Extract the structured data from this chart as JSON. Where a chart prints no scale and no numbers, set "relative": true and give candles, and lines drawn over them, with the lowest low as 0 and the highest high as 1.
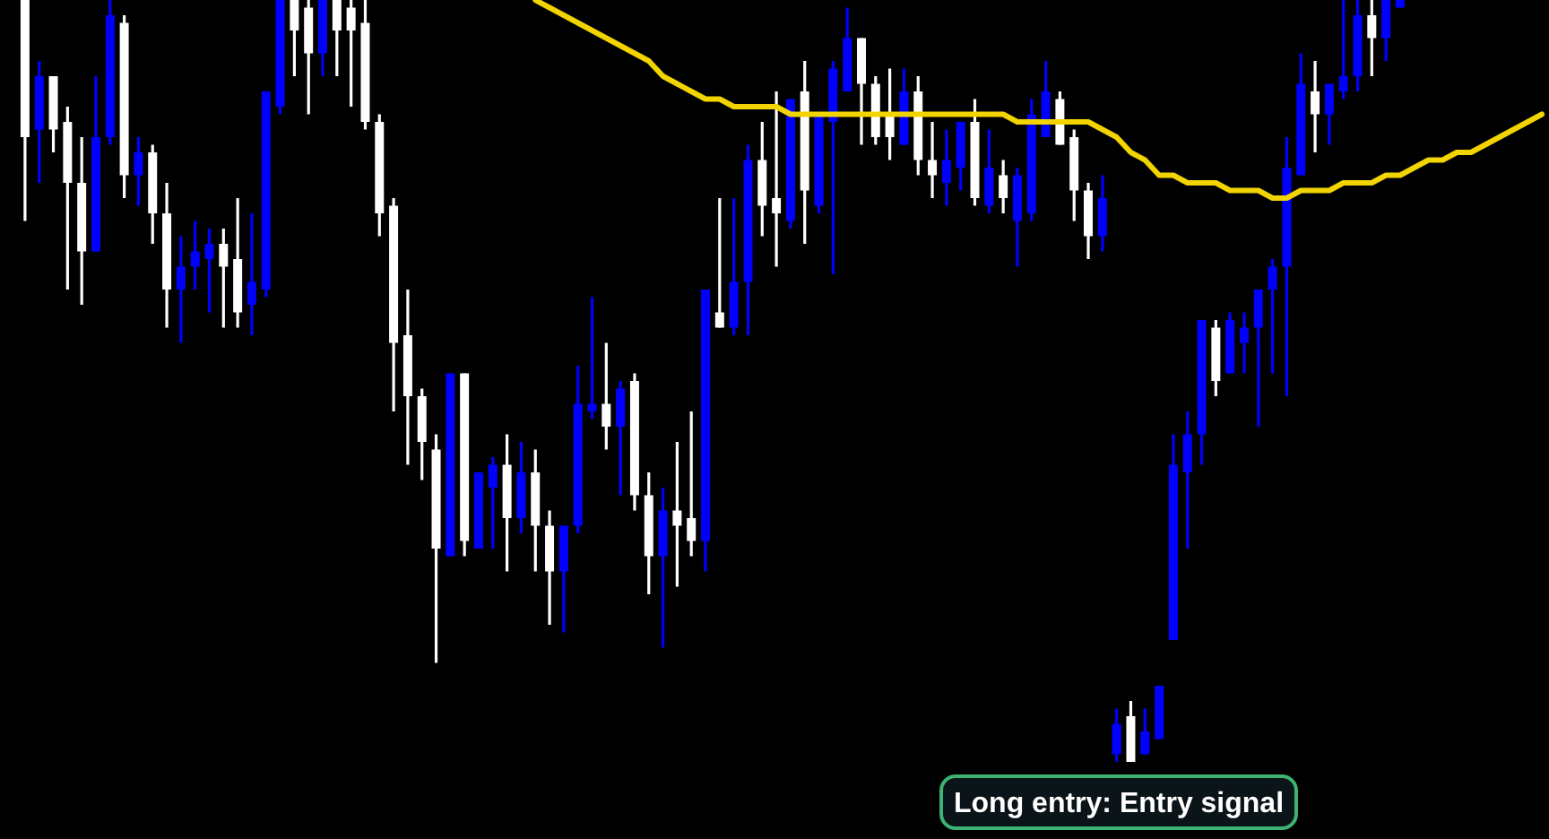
{
  "chart_data": {
    "type": "candlestick",
    "relative": true,
    "categories": [
      null,
      null,
      null,
      null,
      null,
      null,
      null,
      null,
      null,
      null,
      null,
      null,
      null,
      null,
      null,
      null,
      null,
      null,
      null,
      null,
      null,
      null,
      null,
      null,
      null,
      null,
      null,
      null,
      null,
      null,
      null,
      null,
      null,
      null,
      null,
      null,
      null,
      null,
      null,
      null,
      null,
      null,
      null,
      null,
      null,
      null,
      null,
      null,
      null,
      null,
      null,
      null,
      null,
      null,
      null,
      null,
      null,
      null,
      null,
      null,
      null,
      null,
      null,
      null,
      null,
      null,
      null,
      null,
      null,
      null,
      null,
      null,
      null,
      null,
      null,
      null,
      null,
      null,
      null,
      null,
      null,
      null,
      null,
      null,
      null,
      null,
      null,
      null,
      null,
      null,
      null,
      null,
      null,
      null,
      null,
      null,
      null,
      null,
      null,
      null,
      null,
      null,
      null,
      null,
      null,
      null,
      null,
      null
    ],
    "ohlc": [
      [
        1.0,
        1.0,
        0.71,
        0.82
      ],
      [
        0.83,
        0.92,
        0.76,
        0.9
      ],
      [
        0.9,
        0.9,
        0.8,
        0.83
      ],
      [
        0.84,
        0.86,
        0.62,
        0.76
      ],
      [
        0.76,
        0.82,
        0.6,
        0.67
      ],
      [
        0.67,
        0.9,
        0.67,
        0.82
      ],
      [
        0.82,
        1.0,
        0.81,
        0.98
      ],
      [
        0.97,
        0.98,
        0.74,
        0.77
      ],
      [
        0.77,
        0.82,
        0.73,
        0.8
      ],
      [
        0.8,
        0.81,
        0.68,
        0.72
      ],
      [
        0.72,
        0.76,
        0.57,
        0.62
      ],
      [
        0.62,
        0.69,
        0.55,
        0.65
      ],
      [
        0.65,
        0.71,
        0.62,
        0.67
      ],
      [
        0.66,
        0.7,
        0.59,
        0.68
      ],
      [
        0.68,
        0.7,
        0.57,
        0.65
      ],
      [
        0.66,
        0.74,
        0.57,
        0.59
      ],
      [
        0.6,
        0.72,
        0.56,
        0.63
      ],
      [
        0.62,
        0.88,
        0.61,
        0.88
      ],
      [
        0.86,
        1.0,
        0.85,
        1.0
      ],
      [
        1.0,
        1.0,
        0.9,
        0.96
      ],
      [
        0.99,
        1.0,
        0.85,
        0.93
      ],
      [
        0.93,
        1.0,
        0.9,
        1.0
      ],
      [
        1.0,
        1.0,
        0.9,
        0.96
      ],
      [
        0.99,
        1.0,
        0.86,
        0.96
      ],
      [
        0.97,
        1.0,
        0.83,
        0.84
      ],
      [
        0.84,
        0.85,
        0.69,
        0.72
      ],
      [
        0.73,
        0.74,
        0.46,
        0.55
      ],
      [
        0.56,
        0.62,
        0.39,
        0.48
      ],
      [
        0.48,
        0.49,
        0.37,
        0.42
      ],
      [
        0.41,
        0.43,
        0.13,
        0.28
      ],
      [
        0.27,
        0.51,
        0.27,
        0.51
      ],
      [
        0.51,
        0.51,
        0.27,
        0.29
      ],
      [
        0.28,
        0.38,
        0.28,
        0.38
      ],
      [
        0.36,
        0.4,
        0.28,
        0.39
      ],
      [
        0.39,
        0.43,
        0.25,
        0.32
      ],
      [
        0.32,
        0.42,
        0.3,
        0.38
      ],
      [
        0.38,
        0.41,
        0.25,
        0.31
      ],
      [
        0.31,
        0.33,
        0.18,
        0.25
      ],
      [
        0.25,
        0.31,
        0.17,
        0.31
      ],
      [
        0.31,
        0.52,
        0.3,
        0.47
      ],
      [
        0.46,
        0.61,
        0.45,
        0.47
      ],
      [
        0.47,
        0.55,
        0.41,
        0.44
      ],
      [
        0.44,
        0.5,
        0.35,
        0.49
      ],
      [
        0.5,
        0.51,
        0.33,
        0.35
      ],
      [
        0.35,
        0.38,
        0.22,
        0.27
      ],
      [
        0.27,
        0.36,
        0.15,
        0.33
      ],
      [
        0.33,
        0.42,
        0.23,
        0.31
      ],
      [
        0.32,
        0.46,
        0.27,
        0.29
      ],
      [
        0.29,
        0.62,
        0.25,
        0.62
      ],
      [
        0.59,
        0.74,
        0.57,
        0.57
      ],
      [
        0.57,
        0.74,
        0.56,
        0.63
      ],
      [
        0.63,
        0.81,
        0.56,
        0.79
      ],
      [
        0.79,
        0.84,
        0.69,
        0.73
      ],
      [
        0.74,
        0.88,
        0.65,
        0.72
      ],
      [
        0.71,
        0.87,
        0.7,
        0.87
      ],
      [
        0.88,
        0.92,
        0.68,
        0.75
      ],
      [
        0.73,
        0.85,
        0.72,
        0.85
      ],
      [
        0.84,
        0.92,
        0.64,
        0.91
      ],
      [
        0.88,
        0.99,
        0.88,
        0.95
      ],
      [
        0.95,
        0.95,
        0.81,
        0.89
      ],
      [
        0.89,
        0.9,
        0.81,
        0.82
      ],
      [
        0.85,
        0.91,
        0.79,
        0.82
      ],
      [
        0.81,
        0.91,
        0.81,
        0.88
      ],
      [
        0.88,
        0.9,
        0.77,
        0.79
      ],
      [
        0.79,
        0.84,
        0.74,
        0.77
      ],
      [
        0.76,
        0.83,
        0.73,
        0.79
      ],
      [
        0.78,
        0.84,
        0.75,
        0.84
      ],
      [
        0.84,
        0.87,
        0.73,
        0.74
      ],
      [
        0.73,
        0.83,
        0.72,
        0.78
      ],
      [
        0.77,
        0.79,
        0.72,
        0.74
      ],
      [
        0.71,
        0.78,
        0.65,
        0.77
      ],
      [
        0.72,
        0.87,
        0.71,
        0.85
      ],
      [
        0.82,
        0.92,
        0.82,
        0.88
      ],
      [
        0.87,
        0.88,
        0.81,
        0.81
      ],
      [
        0.82,
        0.83,
        0.71,
        0.75
      ],
      [
        0.75,
        0.76,
        0.66,
        0.69
      ],
      [
        0.69,
        0.77,
        0.67,
        0.74
      ],
      [
        0.01,
        0.07,
        0.0,
        0.05
      ],
      [
        0.06,
        0.08,
        0.0,
        0.0
      ],
      [
        0.01,
        0.07,
        0.01,
        0.04
      ],
      [
        0.03,
        0.1,
        0.03,
        0.1
      ],
      [
        0.16,
        0.43,
        0.16,
        0.39
      ],
      [
        0.38,
        0.46,
        0.28,
        0.43
      ],
      [
        0.43,
        0.58,
        0.39,
        0.58
      ],
      [
        0.57,
        0.58,
        0.48,
        0.5
      ],
      [
        0.51,
        0.59,
        0.51,
        0.58
      ],
      [
        0.55,
        0.59,
        0.51,
        0.57
      ],
      [
        0.57,
        0.62,
        0.44,
        0.62
      ],
      [
        0.62,
        0.66,
        0.51,
        0.65
      ],
      [
        0.65,
        0.82,
        0.48,
        0.78
      ],
      [
        0.77,
        0.93,
        0.77,
        0.89
      ],
      [
        0.88,
        0.92,
        0.8,
        0.85
      ],
      [
        0.85,
        0.89,
        0.81,
        0.89
      ],
      [
        0.88,
        1.0,
        0.87,
        0.9
      ],
      [
        0.9,
        1.0,
        0.88,
        0.98
      ],
      [
        0.98,
        1.0,
        0.9,
        0.95
      ],
      [
        0.95,
        1.0,
        0.92,
        1.0
      ],
      [
        0.99,
        1.0,
        0.99,
        1.0
      ],
      null,
      null,
      null,
      null,
      null,
      null,
      null,
      null,
      null,
      null
    ],
    "colors": [
      "#ffffff",
      "#0000ff",
      "#ffffff",
      "#ffffff",
      "#ffffff",
      "#0000ff",
      "#0000ff",
      "#ffffff",
      "#0000ff",
      "#ffffff",
      "#ffffff",
      "#0000ff",
      "#0000ff",
      "#0000ff",
      "#ffffff",
      "#ffffff",
      "#0000ff",
      "#0000ff",
      "#0000ff",
      "#ffffff",
      "#ffffff",
      "#0000ff",
      "#ffffff",
      "#ffffff",
      "#ffffff",
      "#ffffff",
      "#ffffff",
      "#ffffff",
      "#ffffff",
      "#ffffff",
      "#0000ff",
      "#ffffff",
      "#0000ff",
      "#0000ff",
      "#ffffff",
      "#0000ff",
      "#ffffff",
      "#ffffff",
      "#0000ff",
      "#0000ff",
      "#0000ff",
      "#ffffff",
      "#0000ff",
      "#ffffff",
      "#ffffff",
      "#0000ff",
      "#ffffff",
      "#ffffff",
      "#0000ff",
      "#ffffff",
      "#0000ff",
      "#0000ff",
      "#ffffff",
      "#ffffff",
      "#0000ff",
      "#ffffff",
      "#0000ff",
      "#0000ff",
      "#0000ff",
      "#ffffff",
      "#ffffff",
      "#ffffff",
      "#0000ff",
      "#ffffff",
      "#ffffff",
      "#0000ff",
      "#0000ff",
      "#ffffff",
      "#0000ff",
      "#ffffff",
      "#0000ff",
      "#0000ff",
      "#0000ff",
      "#ffffff",
      "#ffffff",
      "#ffffff",
      "#0000ff",
      "#0000ff",
      "#ffffff",
      "#0000ff",
      "#0000ff",
      "#0000ff",
      "#0000ff",
      "#0000ff",
      "#ffffff",
      "#0000ff",
      "#0000ff",
      "#0000ff",
      "#0000ff",
      "#0000ff",
      "#0000ff",
      "#ffffff",
      "#0000ff",
      "#0000ff",
      "#0000ff",
      "#ffffff",
      "#0000ff",
      "#0000ff",
      null,
      null,
      null,
      null,
      null,
      null,
      null,
      null,
      null,
      null
    ],
    "series": [
      {
        "type": "line",
        "color": "#f2d500",
        "values": [
          null,
          null,
          null,
          null,
          null,
          null,
          null,
          null,
          null,
          null,
          null,
          null,
          null,
          null,
          null,
          null,
          null,
          null,
          null,
          null,
          null,
          null,
          null,
          null,
          null,
          null,
          null,
          null,
          null,
          null,
          null,
          null,
          null,
          null,
          null,
          null,
          1.0,
          0.99,
          0.98,
          0.97,
          0.96,
          0.95,
          0.94,
          0.93,
          0.92,
          0.9,
          0.89,
          0.88,
          0.87,
          0.87,
          0.86,
          0.86,
          0.86,
          0.86,
          0.85,
          0.85,
          0.85,
          0.85,
          0.85,
          0.85,
          0.85,
          0.85,
          0.85,
          0.85,
          0.85,
          0.85,
          0.85,
          0.85,
          0.85,
          0.85,
          0.84,
          0.84,
          0.84,
          0.84,
          0.84,
          0.84,
          0.83,
          0.82,
          0.8,
          0.79,
          0.77,
          0.77,
          0.76,
          0.76,
          0.76,
          0.75,
          0.75,
          0.75,
          0.74,
          0.74,
          0.75,
          0.75,
          0.75,
          0.76,
          0.76,
          0.76,
          0.77,
          0.77,
          0.78,
          0.79,
          0.79,
          0.8,
          0.8,
          0.81,
          0.82,
          0.83,
          0.84,
          0.85
        ]
      }
    ],
    "annotations": [
      "Long entry: Entry signal"
    ]
  }
}
